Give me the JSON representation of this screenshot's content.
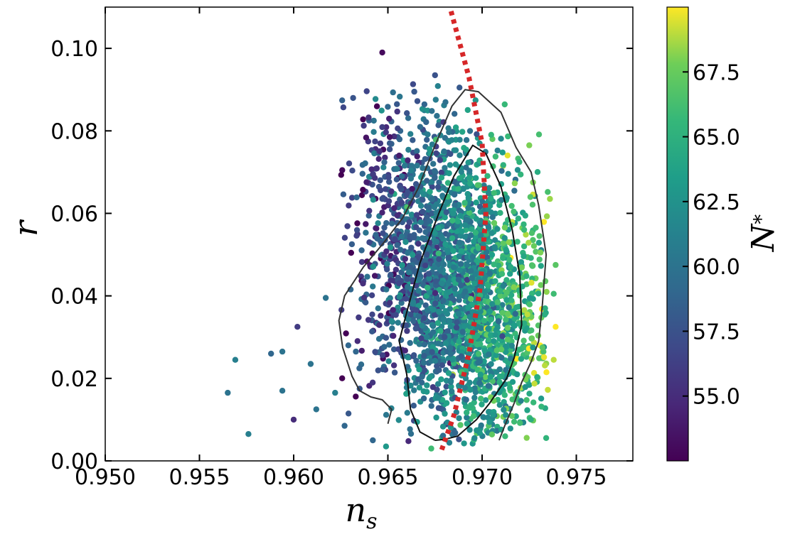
{
  "chart_data": {
    "type": "scatter",
    "title": "",
    "xlabel": "n_s",
    "ylabel": "r",
    "xlim": [
      0.95,
      0.978
    ],
    "ylim": [
      0.0,
      0.11
    ],
    "x_ticks": [
      0.95,
      0.955,
      0.96,
      0.965,
      0.97,
      0.975
    ],
    "x_tick_labels": [
      "0.950",
      "0.955",
      "0.960",
      "0.965",
      "0.970",
      "0.975"
    ],
    "y_ticks": [
      0.0,
      0.02,
      0.04,
      0.06,
      0.08,
      0.1
    ],
    "y_tick_labels": [
      "0.00",
      "0.02",
      "0.04",
      "0.06",
      "0.08",
      "0.10"
    ],
    "grid": false,
    "colorbar": {
      "label": "N_*",
      "colormap": "viridis",
      "range": [
        52.5,
        70.0
      ],
      "ticks": [
        55.0,
        57.5,
        60.0,
        62.5,
        65.0,
        67.5
      ],
      "tick_labels": [
        "55.0",
        "57.5",
        "60.0",
        "62.5",
        "65.0",
        "67.5"
      ]
    },
    "points": [
      {
        "x": 0.9647,
        "y": 0.099,
        "c": 53
      },
      {
        "x": 0.9651,
        "y": 0.0785,
        "c": 53.5
      },
      {
        "x": 0.9656,
        "y": 0.074,
        "c": 54
      },
      {
        "x": 0.9655,
        "y": 0.0595,
        "c": 55
      },
      {
        "x": 0.9642,
        "y": 0.0695,
        "c": 56
      },
      {
        "x": 0.9629,
        "y": 0.028,
        "c": 59
      },
      {
        "x": 0.9602,
        "y": 0.0325,
        "c": 56
      },
      {
        "x": 0.96,
        "y": 0.01,
        "c": 55
      },
      {
        "x": 0.9565,
        "y": 0.0165,
        "c": 60
      },
      {
        "x": 0.9576,
        "y": 0.0065,
        "c": 61
      },
      {
        "x": 0.9594,
        "y": 0.0265,
        "c": 60
      },
      {
        "x": 0.9609,
        "y": 0.0235,
        "c": 60
      },
      {
        "x": 0.9569,
        "y": 0.0245,
        "c": 61
      },
      {
        "x": 0.9588,
        "y": 0.026,
        "c": 59
      },
      {
        "x": 0.9617,
        "y": 0.0395,
        "c": 60
      },
      {
        "x": 0.9633,
        "y": 0.0265,
        "c": 59
      },
      {
        "x": 0.9688,
        "y": 0.0905,
        "c": 58
      },
      {
        "x": 0.9675,
        "y": 0.0935,
        "c": 57.5
      },
      {
        "x": 0.9664,
        "y": 0.0895,
        "c": 58
      },
      {
        "x": 0.9725,
        "y": 0.0765,
        "c": 68
      },
      {
        "x": 0.9736,
        "y": 0.0635,
        "c": 68.5
      },
      {
        "x": 0.9739,
        "y": 0.0475,
        "c": 67
      },
      {
        "x": 0.9739,
        "y": 0.0325,
        "c": 70
      },
      {
        "x": 0.9738,
        "y": 0.0245,
        "c": 69
      },
      {
        "x": 0.9738,
        "y": 0.0405,
        "c": 66
      },
      {
        "x": 0.9732,
        "y": 0.0275,
        "c": 67
      },
      {
        "x": 0.9727,
        "y": 0.0675,
        "c": 68
      },
      {
        "x": 0.9731,
        "y": 0.0505,
        "c": 68
      },
      {
        "x": 0.9724,
        "y": 0.0355,
        "c": 69
      },
      {
        "x": 0.9642,
        "y": 0.005,
        "c": 59
      },
      {
        "x": 0.9649,
        "y": 0.0035,
        "c": 63
      },
      {
        "x": 0.9673,
        "y": 0.003,
        "c": 66
      },
      {
        "x": 0.9692,
        "y": 0.009,
        "c": 64
      },
      {
        "x": 0.9717,
        "y": 0.0095,
        "c": 66
      },
      {
        "x": 0.9622,
        "y": 0.0165,
        "c": 61
      },
      {
        "x": 0.9635,
        "y": 0.0175,
        "c": 58
      },
      {
        "x": 0.9627,
        "y": 0.0085,
        "c": 59
      },
      {
        "x": 0.9612,
        "y": 0.0125,
        "c": 60
      },
      {
        "x": 0.9594,
        "y": 0.017,
        "c": 60
      }
    ],
    "dense_cloud": {
      "note": "",
      "count": 2600,
      "seed": 7,
      "center_x": 0.9686,
      "center_y": 0.042,
      "spread_x": 0.0024,
      "spread_y": 0.019,
      "x_r_slope": -0.045,
      "c_mean": 61.5,
      "c_spread": 2.3,
      "c_x_slope": 1100
    },
    "red_dotted_line": {
      "x": [
        0.96835,
        0.9693,
        0.97,
        0.9702,
        0.9699,
        0.9693,
        0.9685,
        0.9678
      ],
      "y": [
        0.109,
        0.093,
        0.077,
        0.06,
        0.042,
        0.026,
        0.011,
        0.002
      ],
      "color": "#d62728"
    },
    "contour_outer": {
      "x": [
        0.965,
        0.9652,
        0.9647,
        0.9641,
        0.9635,
        0.9631,
        0.9626,
        0.9624,
        0.9627,
        0.9637,
        0.9648,
        0.9658,
        0.9666,
        0.9675,
        0.9684,
        0.9691,
        0.9698,
        0.971,
        0.9718,
        0.9726,
        0.973,
        0.9734,
        0.9732,
        0.973,
        0.9726,
        0.9721,
        0.9717,
        0.9712,
        0.9709
      ],
      "y": [
        0.009,
        0.0125,
        0.0148,
        0.0155,
        0.017,
        0.0205,
        0.0275,
        0.034,
        0.04,
        0.047,
        0.053,
        0.059,
        0.066,
        0.0765,
        0.086,
        0.09,
        0.0895,
        0.0845,
        0.076,
        0.07,
        0.062,
        0.05,
        0.038,
        0.029,
        0.024,
        0.019,
        0.014,
        0.0085,
        0.005
      ],
      "color": "#333333"
    },
    "contour_inner": {
      "x": [
        0.9675,
        0.9667,
        0.9662,
        0.966,
        0.9656,
        0.966,
        0.9667,
        0.9677,
        0.9685,
        0.9695,
        0.9702,
        0.971,
        0.9716,
        0.972,
        0.9721,
        0.9717,
        0.9713,
        0.9704,
        0.9697,
        0.9692,
        0.9687,
        0.968,
        0.9675
      ],
      "y": [
        0.005,
        0.007,
        0.0125,
        0.021,
        0.029,
        0.036,
        0.048,
        0.06,
        0.069,
        0.0765,
        0.0745,
        0.0665,
        0.056,
        0.045,
        0.033,
        0.025,
        0.02,
        0.014,
        0.01,
        0.008,
        0.006,
        0.0052,
        0.005
      ],
      "color": "#111111"
    }
  }
}
